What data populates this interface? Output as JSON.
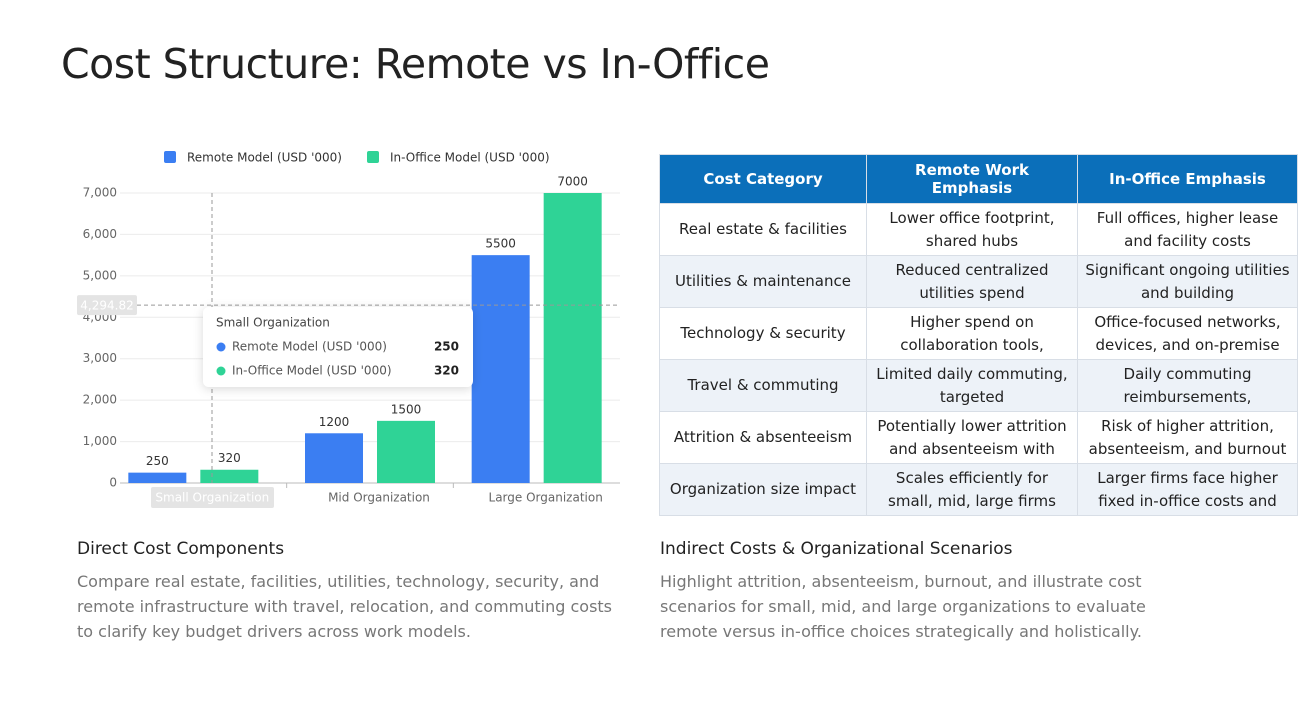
{
  "title": "Cost Structure: Remote vs In-Office",
  "chart_data": {
    "type": "bar",
    "categories": [
      "Small Organization",
      "Mid Organization",
      "Large Organization"
    ],
    "series": [
      {
        "name": "Remote Model (USD '000)",
        "color": "#3b7ef2",
        "values": [
          250,
          1200,
          5500
        ]
      },
      {
        "name": "In-Office Model (USD '000)",
        "color": "#2fd396",
        "values": [
          320,
          1500,
          7000
        ]
      }
    ],
    "ylim": [
      0,
      7000
    ],
    "yticks": [
      0,
      {
        "value": 1000,
        "label": "1,000"
      },
      {
        "value": 2000,
        "label": "2,000"
      },
      {
        "value": 3000,
        "label": "3,000"
      },
      {
        "value": 4000,
        "label": "4,000"
      },
      {
        "value": 5000,
        "label": "5,000"
      },
      {
        "value": 6000,
        "label": "6,000"
      },
      {
        "value": 7000,
        "label": "7,000"
      }
    ],
    "grid": true,
    "legend": "top",
    "pointer": {
      "value": 4294.82,
      "label": "4,294.82"
    }
  },
  "table": {
    "header": [
      "Cost Category",
      "Remote Work Emphasis",
      "In-Office Emphasis"
    ],
    "rows": [
      [
        "Real estate & facilities",
        "Lower office footprint, shared hubs",
        "Full offices, higher lease and facility costs"
      ],
      [
        "Utilities & maintenance",
        "Reduced centralized utilities spend",
        "Significant ongoing utilities and building"
      ],
      [
        "Technology & security",
        "Higher spend on collaboration tools,",
        "Office-focused networks, devices, and on-premise"
      ],
      [
        "Travel & commuting",
        "Limited daily commuting, targeted",
        "Daily commuting reimbursements,"
      ],
      [
        "Attrition & absenteeism",
        "Potentially lower attrition and absenteeism with",
        "Risk of higher attrition, absenteeism, and burnout"
      ],
      [
        "Organization size impact",
        "Scales efficiently for small, mid, large firms",
        "Larger firms face higher fixed in-office costs and"
      ]
    ]
  },
  "sections": [
    {
      "heading": "Direct Cost Components",
      "text": "Compare real estate, facilities, utilities, technology, security, and remote infrastructure with travel, relocation, and commuting costs to clarify key budget drivers across work models."
    },
    {
      "heading": "Indirect Costs & Organizational Scenarios",
      "text": "Highlight attrition, absenteeism, burnout, and illustrate cost scenarios for small, mid, and large organizations to evaluate remote versus in-office choices strategically and holistically."
    }
  ]
}
